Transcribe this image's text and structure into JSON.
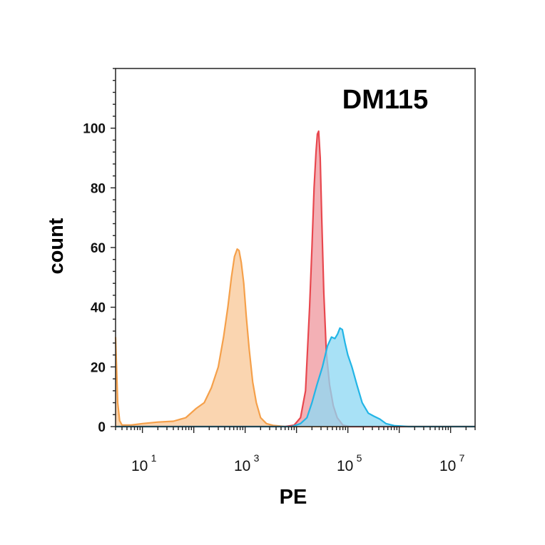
{
  "chart_data": {
    "type": "area",
    "title": "DM115",
    "xlabel": "PE",
    "ylabel": "count",
    "x_scale": "log10",
    "xlim": [
      3,
      30000000
    ],
    "ylim": [
      0,
      120
    ],
    "y_ticks": [
      0,
      20,
      40,
      60,
      80,
      100
    ],
    "y_tick_labels": [
      "0",
      "20",
      "40",
      "60",
      "80",
      "100"
    ],
    "x_ticks": [
      {
        "value": 10,
        "base": "10",
        "exp": "1"
      },
      {
        "value": 1000,
        "base": "10",
        "exp": "3"
      },
      {
        "value": 100000,
        "base": "10",
        "exp": "5"
      },
      {
        "value": 10000000,
        "base": "10",
        "exp": "7"
      }
    ],
    "grid": false,
    "legend": "none",
    "series": [
      {
        "color": "#f5a04a",
        "fill": "#f9c99a",
        "points": [
          [
            3,
            30
          ],
          [
            3.3,
            8
          ],
          [
            3.6,
            2
          ],
          [
            4,
            0.5
          ],
          [
            6,
            0.5
          ],
          [
            10,
            1
          ],
          [
            20,
            1.5
          ],
          [
            40,
            1.8
          ],
          [
            70,
            3
          ],
          [
            110,
            6
          ],
          [
            160,
            8
          ],
          [
            220,
            13
          ],
          [
            300,
            20
          ],
          [
            380,
            30
          ],
          [
            460,
            40
          ],
          [
            540,
            50
          ],
          [
            620,
            57
          ],
          [
            700,
            59.5
          ],
          [
            760,
            59
          ],
          [
            840,
            55
          ],
          [
            940,
            48
          ],
          [
            1050,
            37
          ],
          [
            1200,
            26
          ],
          [
            1400,
            15
          ],
          [
            1650,
            8
          ],
          [
            2000,
            3
          ],
          [
            2600,
            1
          ],
          [
            3500,
            0.4
          ],
          [
            6000,
            0
          ],
          [
            30000000,
            0
          ]
        ]
      },
      {
        "color": "#e8474e",
        "fill": "#f09aa0",
        "points": [
          [
            3,
            0
          ],
          [
            6000,
            0
          ],
          [
            9000,
            0.5
          ],
          [
            12000,
            3
          ],
          [
            15000,
            12
          ],
          [
            18000,
            40
          ],
          [
            20000,
            60
          ],
          [
            22000,
            80
          ],
          [
            24000,
            92
          ],
          [
            25500,
            98
          ],
          [
            27000,
            99
          ],
          [
            29000,
            90
          ],
          [
            31000,
            70
          ],
          [
            34000,
            45
          ],
          [
            38000,
            25
          ],
          [
            44000,
            14
          ],
          [
            52000,
            7
          ],
          [
            62000,
            3
          ],
          [
            80000,
            0.5
          ],
          [
            110000,
            0
          ],
          [
            30000000,
            0
          ]
        ]
      },
      {
        "color": "#22b5e6",
        "fill": "#8fd9f3",
        "points": [
          [
            3,
            0
          ],
          [
            8000,
            0
          ],
          [
            12000,
            1
          ],
          [
            16000,
            3
          ],
          [
            20000,
            8
          ],
          [
            25000,
            14
          ],
          [
            32000,
            20
          ],
          [
            40000,
            27
          ],
          [
            48000,
            30
          ],
          [
            56000,
            29.5
          ],
          [
            63000,
            31
          ],
          [
            70000,
            33
          ],
          [
            78000,
            32.5
          ],
          [
            88000,
            28
          ],
          [
            100000,
            24
          ],
          [
            120000,
            20
          ],
          [
            150000,
            14
          ],
          [
            190000,
            8
          ],
          [
            250000,
            4.5
          ],
          [
            320000,
            3.5
          ],
          [
            420000,
            2.5
          ],
          [
            550000,
            1
          ],
          [
            800000,
            0.3
          ],
          [
            1500000,
            0
          ],
          [
            30000000,
            0
          ]
        ]
      }
    ]
  }
}
